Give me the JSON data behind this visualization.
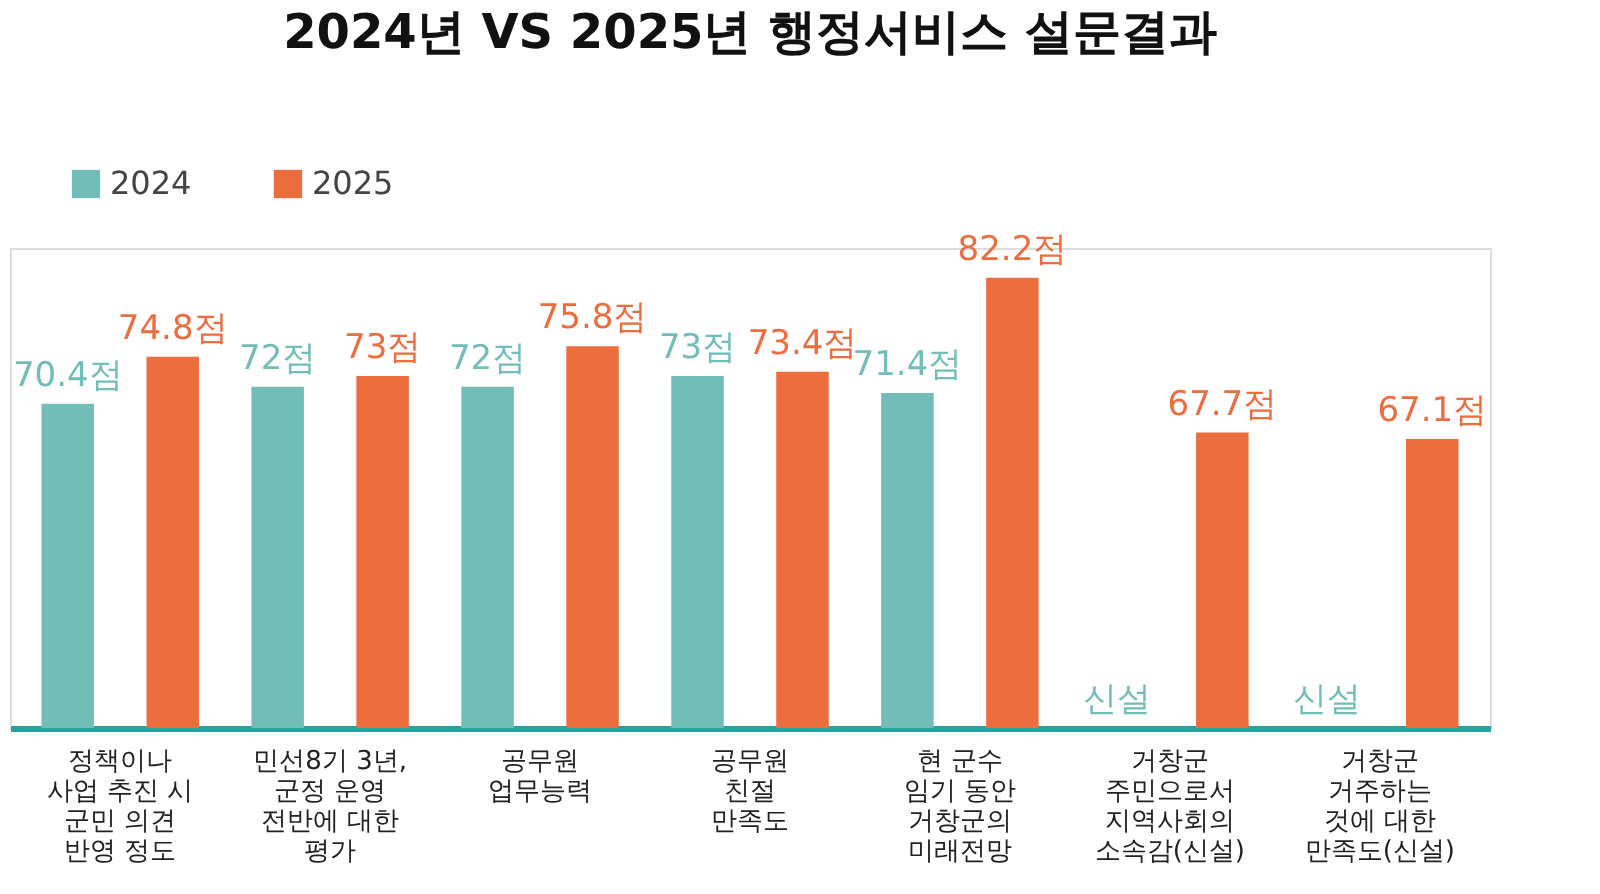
{
  "chart_data": {
    "type": "bar",
    "title": "2024년 VS 2025년 행정서비스 설문결과",
    "categories": [
      "정책이나\n사업 추진 시\n군민 의견\n반영 정도",
      "민선8기 3년,\n군정 운영\n전반에 대한\n평가",
      "공무원\n업무능력",
      "공무원\n친절\n만족도",
      "현 군수\n임기 동안\n거창군의\n미래전망",
      "거창군\n주민으로서\n지역사회의\n소속감(신설)",
      "거창군\n거주하는\n것에 대한\n만족도(신설)"
    ],
    "series": [
      {
        "name": "2024",
        "color": "#73bdb9",
        "values": [
          70.4,
          72,
          72,
          73,
          71.4,
          null,
          null
        ],
        "value_labels": [
          "70.4점",
          "72점",
          "72점",
          "73점",
          "71.4점",
          "신설",
          "신설"
        ]
      },
      {
        "name": "2025",
        "color": "#ec6d3d",
        "values": [
          74.8,
          73,
          75.8,
          73.4,
          82.2,
          67.7,
          67.1
        ],
        "value_labels": [
          "74.8점",
          "73점",
          "75.8점",
          "73.4점",
          "82.2점",
          "67.7점",
          "67.1점"
        ]
      }
    ],
    "ylim": [
      40,
      85
    ],
    "tick_labels": "x",
    "grid": false,
    "legend": "top left"
  }
}
